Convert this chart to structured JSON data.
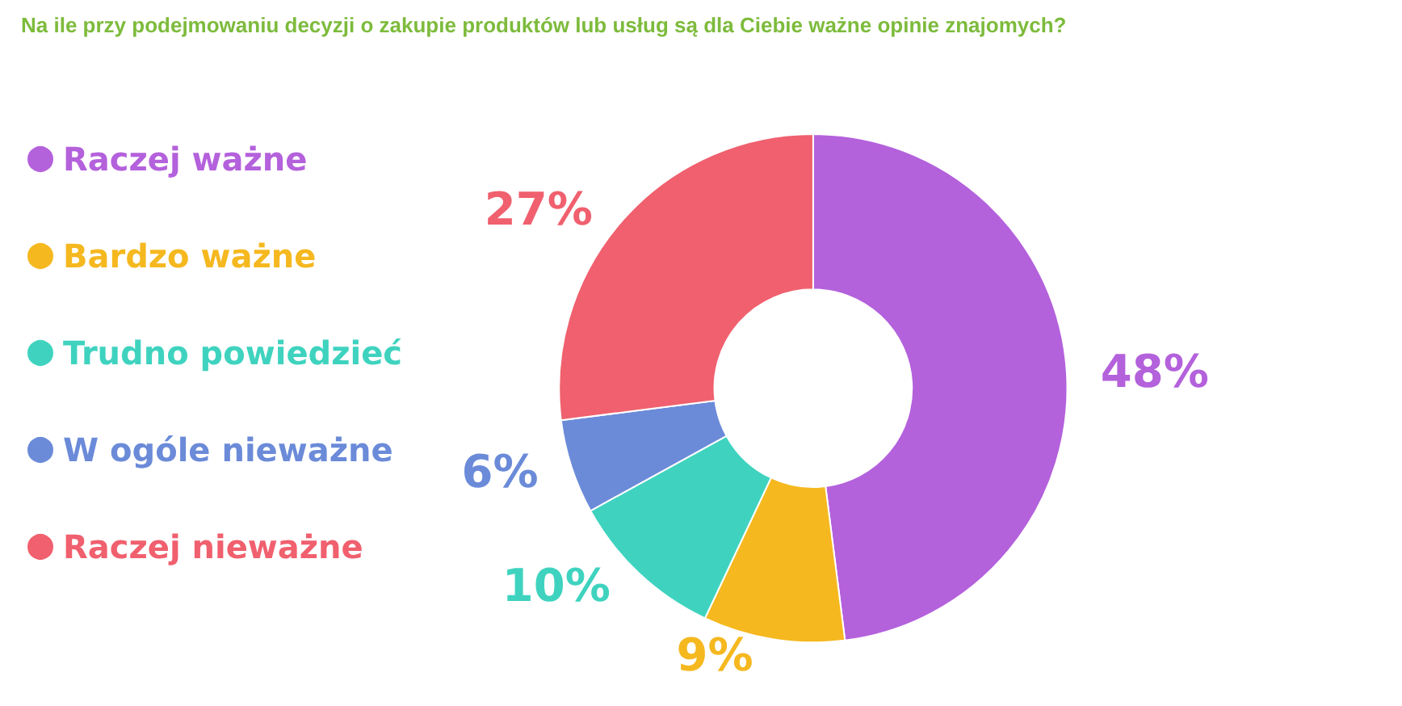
{
  "chart_data": {
    "type": "donut",
    "title": "Na ile przy podejmowaniu decyzji o zakupie produktów lub usług są dla Ciebie ważne opinie znajomych?",
    "categories": [
      "Raczej ważne",
      "Bardzo ważne",
      "Trudno powiedzieć",
      "W ogóle nieważne",
      "Raczej nieważne"
    ],
    "values": [
      48,
      9,
      10,
      6,
      27
    ],
    "value_labels": [
      "48%",
      "9%",
      "10%",
      "6%",
      "27%"
    ],
    "colors": [
      "#b461dc",
      "#f5b81f",
      "#3fd3bf",
      "#6b8bd9",
      "#f0606e"
    ],
    "legend": "left"
  }
}
